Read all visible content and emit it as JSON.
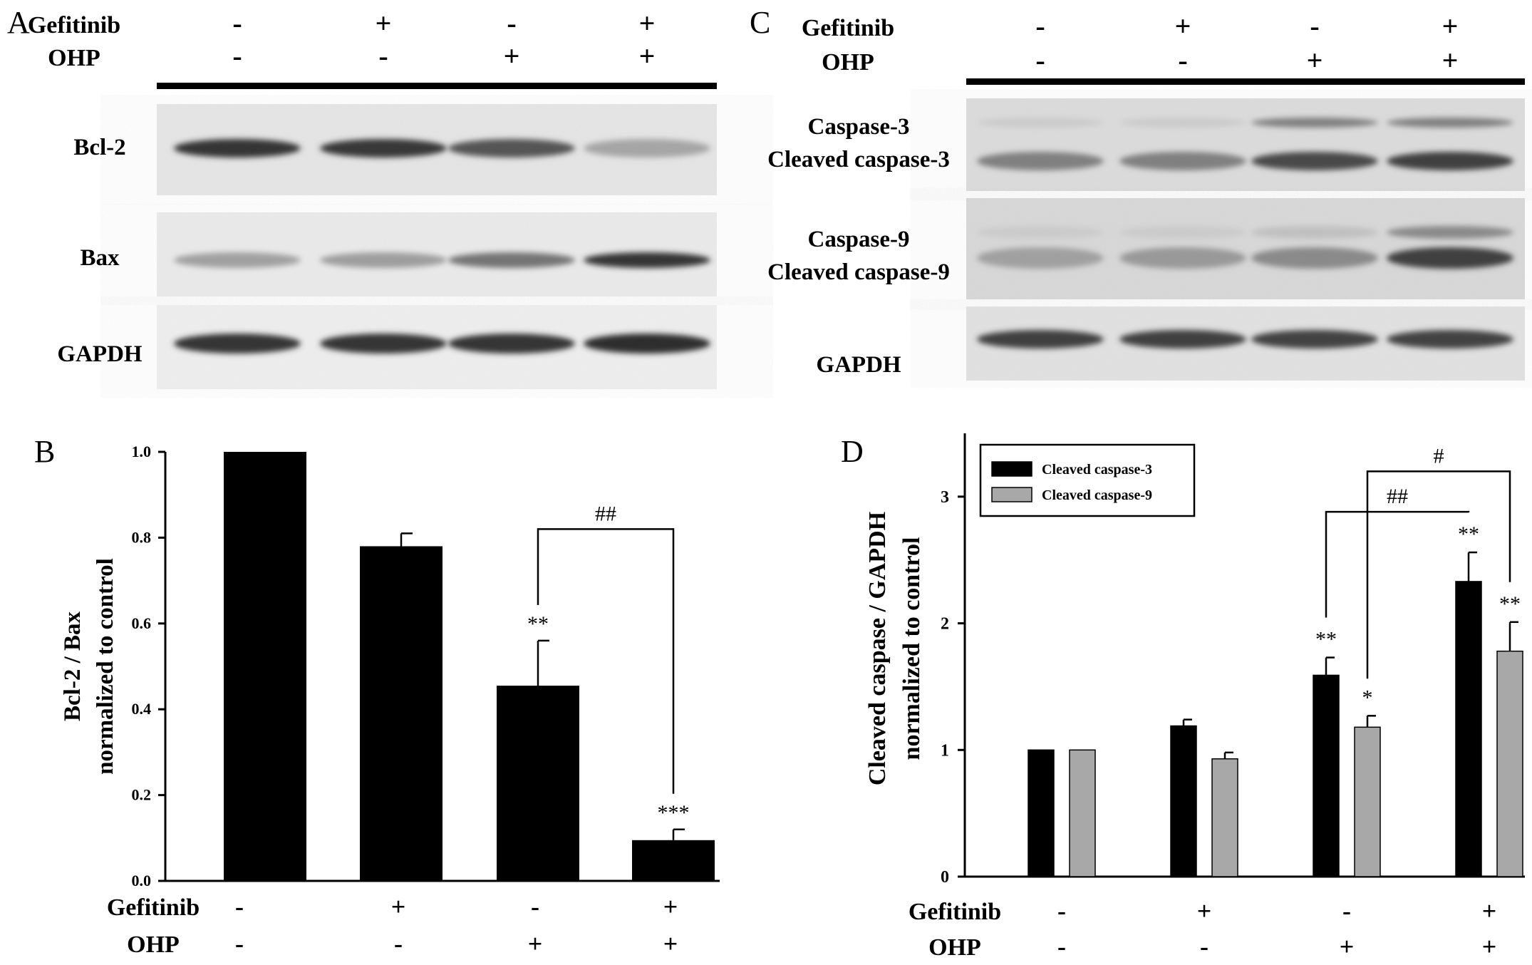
{
  "panels": {
    "A": {
      "letter": "A",
      "treatments": [
        {
          "label": "Gefitinib",
          "signs": [
            "-",
            "+",
            "-",
            "+"
          ]
        },
        {
          "label": "OHP",
          "signs": [
            "-",
            "-",
            "+",
            "+"
          ]
        }
      ],
      "blots": [
        {
          "label": "Bcl-2",
          "bands": [
            [
              0.85,
              0.83,
              0.7,
              0.32
            ]
          ]
        },
        {
          "label": "Bax",
          "bands": [
            [
              0.35,
              0.36,
              0.55,
              0.85
            ]
          ]
        },
        {
          "label": "GAPDH",
          "bands": [
            [
              0.85,
              0.85,
              0.85,
              0.88
            ]
          ]
        }
      ]
    },
    "C": {
      "letter": "C",
      "treatments": [
        {
          "label": "Gefitinib",
          "signs": [
            "-",
            "+",
            "-",
            "+"
          ]
        },
        {
          "label": "OHP",
          "signs": [
            "-",
            "-",
            "+",
            "+"
          ]
        }
      ],
      "blots": [
        {
          "label": "Caspase-3",
          "label2": "Cleaved caspase-3",
          "bands": [
            [
              0.15,
              0.15,
              0.5,
              0.5
            ],
            [
              0.5,
              0.5,
              0.75,
              0.8
            ]
          ]
        },
        {
          "label": "Caspase-9",
          "label2": "Cleaved caspase-9",
          "bands": [
            [
              0.15,
              0.15,
              0.2,
              0.45
            ],
            [
              0.35,
              0.38,
              0.45,
              0.8
            ]
          ]
        },
        {
          "label": "GAPDH",
          "bands": [
            [
              0.8,
              0.8,
              0.78,
              0.78
            ]
          ]
        }
      ]
    }
  },
  "chart_data": [
    {
      "panel": "B",
      "type": "bar",
      "ylabel": "Bcl-2 / Bax",
      "ylabel2": "normalized to control",
      "ylim": [
        0,
        1.0
      ],
      "yticks": [
        "0.0",
        "0.2",
        "0.4",
        "0.6",
        "0.8",
        "1.0"
      ],
      "yticks_num": [
        0.0,
        0.2,
        0.4,
        0.6,
        0.8,
        1.0
      ],
      "values": [
        1.0,
        0.78,
        0.455,
        0.095
      ],
      "errors": [
        0,
        0.03,
        0.105,
        0.025
      ],
      "significance": [
        "",
        "",
        "**",
        "***"
      ],
      "bracket": {
        "from": 2,
        "to": 3,
        "label": "##"
      },
      "treatments": [
        {
          "label": "Gefitinib",
          "signs": [
            "-",
            "+",
            "-",
            "+"
          ]
        },
        {
          "label": "OHP",
          "signs": [
            "-",
            "-",
            "+",
            "+"
          ]
        }
      ]
    },
    {
      "panel": "D",
      "type": "bar",
      "ylabel": "Cleaved caspase / GAPDH",
      "ylabel2": "normalized to control",
      "ylim": [
        0,
        3.5
      ],
      "yticks": [
        "0",
        "1",
        "2",
        "3"
      ],
      "yticks_num": [
        0,
        1,
        2,
        3
      ],
      "legend_position": "top-left",
      "series": [
        {
          "name": "Cleaved caspase-3",
          "color": "#000000",
          "values": [
            1.0,
            1.19,
            1.59,
            2.33
          ],
          "errors": [
            0,
            0.05,
            0.14,
            0.23
          ],
          "significance": [
            "",
            "",
            "**",
            "**"
          ]
        },
        {
          "name": "Cleaved caspase-9",
          "color": "#a8a8a8",
          "values": [
            1.0,
            0.93,
            1.18,
            1.78
          ],
          "errors": [
            0,
            0.05,
            0.09,
            0.23
          ],
          "significance": [
            "",
            "",
            "*",
            "**"
          ]
        }
      ],
      "brackets": [
        {
          "from_group": 2,
          "from_series": 0,
          "to_group": 3,
          "to_series": 0,
          "label": "##"
        },
        {
          "from_group": 2,
          "from_series": 1,
          "to_group": 3,
          "to_series": 1,
          "label": "#"
        }
      ],
      "treatments": [
        {
          "label": "Gefitinib",
          "signs": [
            "-",
            "+",
            "-",
            "+"
          ]
        },
        {
          "label": "OHP",
          "signs": [
            "-",
            "-",
            "+",
            "+"
          ]
        }
      ]
    }
  ]
}
